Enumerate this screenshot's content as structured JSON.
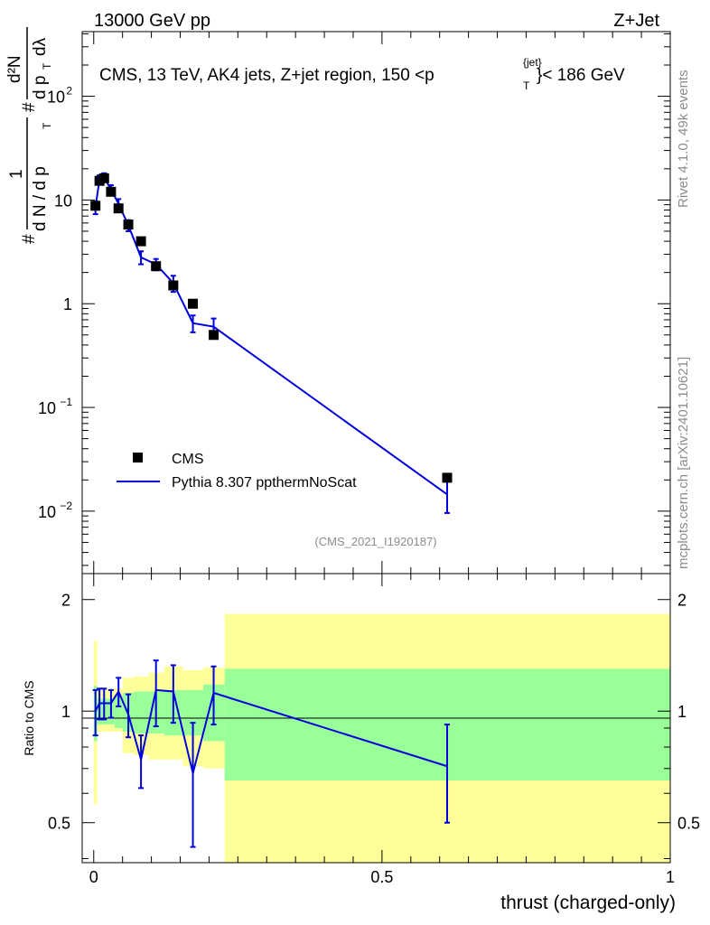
{
  "header": {
    "energy_label": "13000 GeV pp",
    "process_label": "Z+Jet"
  },
  "side_labels": {
    "rivet": "Rivet 4.1.0,  49k events",
    "mcplots": "mcplots.cern.ch [arXiv:2401.10621]"
  },
  "main_plot": {
    "title_prefix": "CMS, 13 TeV, AK4 jets, Z+jet region, 150 <",
    "title_p": "p",
    "title_sup": "{jet}",
    "title_sub": "T",
    "title_suffix": "}< 186 GeV",
    "ylabel_hash1": "#",
    "ylabel_frac_num": "1",
    "ylabel_frac_den": "d N / d p",
    "ylabel_den_sub": "T",
    "ylabel_hash2": "#",
    "ylabel_d2n": "d²N",
    "ylabel_dpt": "d p",
    "ylabel_dlambda": "dλ",
    "analysis_id": "(CMS_2021_I1920187)",
    "yticks": [
      {
        "value": 0.01,
        "base": "10",
        "exp": "−2"
      },
      {
        "value": 0.1,
        "base": "10",
        "exp": "−1"
      },
      {
        "value": 1,
        "base": "1",
        "exp": ""
      },
      {
        "value": 10,
        "base": "10",
        "exp": ""
      },
      {
        "value": 100,
        "base": "10",
        "exp": "2"
      }
    ]
  },
  "legend": {
    "cms_label": "CMS",
    "mc_label": "Pythia 8.307 ppthermNoScat"
  },
  "ratio_plot": {
    "ylabel": "Ratio to CMS",
    "yticks": [
      "0.5",
      "1",
      "2"
    ]
  },
  "xaxis": {
    "label": "thrust (charged-only)",
    "ticks": [
      "0",
      "0.5",
      "1"
    ]
  },
  "colors": {
    "mc_line": "#0000dd",
    "band_inner": "#99ff99",
    "band_outer": "#ffff99",
    "data_marker": "#000000"
  },
  "chart_data": {
    "type": "scatter",
    "log_y": true,
    "xlim": [
      -0.02,
      1.0
    ],
    "ylim": [
      0.0025,
      420
    ],
    "ratio_ylim": [
      0.39,
      2.35
    ],
    "xlabel": "thrust (charged-only)",
    "bins": [
      {
        "lo": 0.0,
        "hi": 0.006,
        "data": 8.8,
        "mc": 8.5,
        "mc_err": 1.2,
        "ratio": 1.0,
        "ratio_err": 0.14,
        "inner": [
          0.83,
          1.17
        ],
        "outer": [
          0.56,
          1.55
        ]
      },
      {
        "lo": 0.006,
        "hi": 0.014,
        "data": 15.3,
        "mc": 15.7,
        "mc_err": 1.6,
        "ratio": 1.05,
        "ratio_err": 0.1,
        "inner": [
          0.92,
          1.08
        ],
        "outer": [
          0.88,
          1.15
        ]
      },
      {
        "lo": 0.014,
        "hi": 0.023,
        "data": 16.2,
        "mc": 16.5,
        "mc_err": 1.6,
        "ratio": 1.05,
        "ratio_err": 0.1,
        "inner": [
          0.92,
          1.08
        ],
        "outer": [
          0.88,
          1.15
        ]
      },
      {
        "lo": 0.023,
        "hi": 0.036,
        "data": 12.0,
        "mc": 12.6,
        "mc_err": 1.3,
        "ratio": 1.05,
        "ratio_err": 0.09,
        "inner": [
          0.92,
          1.08
        ],
        "outer": [
          0.88,
          1.15
        ]
      },
      {
        "lo": 0.036,
        "hi": 0.05,
        "data": 8.3,
        "mc": 9.2,
        "mc_err": 1.0,
        "ratio": 1.13,
        "ratio_err": 0.1,
        "inner": [
          0.9,
          1.1
        ],
        "outer": [
          0.88,
          1.15
        ]
      },
      {
        "lo": 0.05,
        "hi": 0.07,
        "data": 5.8,
        "mc": 5.7,
        "mc_err": 0.7,
        "ratio": 0.98,
        "ratio_err": 0.13,
        "inner": [
          0.88,
          1.12
        ],
        "outer": [
          0.77,
          1.23
        ]
      },
      {
        "lo": 0.07,
        "hi": 0.095,
        "data": 4.0,
        "mc": 2.8,
        "mc_err": 0.4,
        "ratio": 0.74,
        "ratio_err": 0.12,
        "inner": [
          0.87,
          1.13
        ],
        "outer": [
          0.76,
          1.24
        ]
      },
      {
        "lo": 0.095,
        "hi": 0.122,
        "data": 2.3,
        "mc": 2.4,
        "mc_err": 0.3,
        "ratio": 1.14,
        "ratio_err": 0.23,
        "inner": [
          0.87,
          1.13
        ],
        "outer": [
          0.74,
          1.27
        ]
      },
      {
        "lo": 0.122,
        "hi": 0.155,
        "data": 1.5,
        "mc": 1.58,
        "mc_err": 0.28,
        "ratio": 1.13,
        "ratio_err": 0.2,
        "inner": [
          0.86,
          1.14
        ],
        "outer": [
          0.74,
          1.32
        ]
      },
      {
        "lo": 0.155,
        "hi": 0.19,
        "data": 1.0,
        "mc": 0.65,
        "mc_err": 0.12,
        "ratio": 0.68,
        "ratio_err": 0.25,
        "inner": [
          0.86,
          1.14
        ],
        "outer": [
          0.71,
          1.29
        ]
      },
      {
        "lo": 0.19,
        "hi": 0.227,
        "data": 0.5,
        "mc": 0.6,
        "mc_err": 0.12,
        "ratio": 1.12,
        "ratio_err": 0.2,
        "inner": [
          0.83,
          1.18
        ],
        "outer": [
          0.7,
          1.31
        ]
      },
      {
        "lo": 0.227,
        "hi": 1.0,
        "data": 0.021,
        "mc": 0.0145,
        "mc_err": 0.0049,
        "ratio": 0.71,
        "ratio_err": 0.21,
        "inner": [
          0.65,
          1.3
        ],
        "outer": [
          0.39,
          1.83
        ]
      }
    ],
    "x_points": [
      0.003,
      0.01,
      0.018,
      0.03,
      0.043,
      0.06,
      0.082,
      0.108,
      0.138,
      0.172,
      0.208,
      0.613
    ]
  }
}
